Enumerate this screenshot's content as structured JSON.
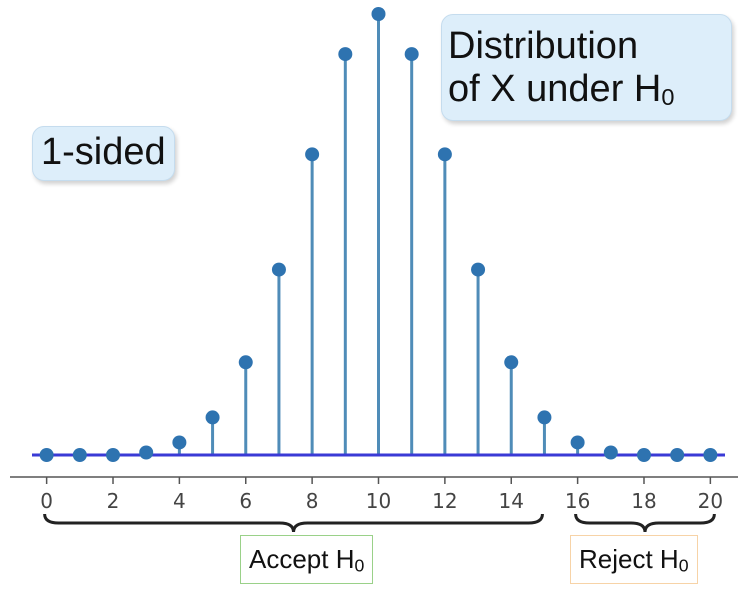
{
  "callouts": {
    "sided": "1-sided",
    "dist_line1": "Distribution",
    "dist_line2": "of X under H",
    "dist_sub": "0"
  },
  "regions": {
    "accept_text": "Accept H",
    "accept_sub": "0",
    "reject_text": "Reject H",
    "reject_sub": "0"
  },
  "chart_data": {
    "type": "stem",
    "x": [
      0,
      1,
      2,
      3,
      4,
      5,
      6,
      7,
      8,
      9,
      10,
      11,
      12,
      13,
      14,
      15,
      16,
      17,
      18,
      19,
      20
    ],
    "values": [
      0.0,
      0.0,
      0.0,
      0.001,
      0.005,
      0.015,
      0.037,
      0.074,
      0.12,
      0.16,
      0.176,
      0.16,
      0.12,
      0.074,
      0.037,
      0.015,
      0.005,
      0.001,
      0.0,
      0.0,
      0.0
    ],
    "xticks": [
      0,
      2,
      4,
      6,
      8,
      10,
      12,
      14,
      16,
      18,
      20
    ],
    "xlim": [
      -0.2,
      20.2
    ],
    "ylim": [
      0,
      0.176
    ],
    "stem_color": "#4f8cb8",
    "marker_color": "#2e73b0",
    "baseline_color": "#3a3ad6",
    "axis_color": "#555555",
    "brace_color": "#222222",
    "accept_range": [
      0,
      15
    ],
    "reject_range": [
      16,
      20
    ]
  }
}
